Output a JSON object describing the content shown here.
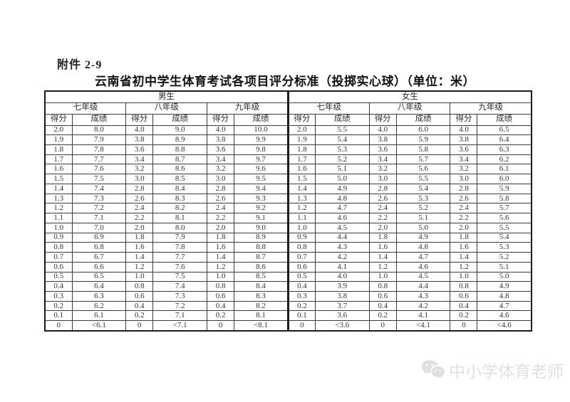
{
  "page": {
    "attachment_label": "附件 2-9",
    "title": "云南省初中学生体育考试各项目评分标准（投掷实心球）（单位：米）"
  },
  "table": {
    "gender_headers": [
      "男生",
      "女生"
    ],
    "grade_headers": [
      "七年级",
      "八年级",
      "九年级"
    ],
    "col_headers": [
      "得分",
      "成绩"
    ],
    "rows": [
      [
        "2.0",
        "8.0",
        "4.0",
        "9.0",
        "4.0",
        "10.0",
        "2.0",
        "5.5",
        "4.0",
        "6.0",
        "4.0",
        "6.5"
      ],
      [
        "1.9",
        "7.9",
        "3.8",
        "8.9",
        "3.8",
        "9.9",
        "1.9",
        "5.4",
        "3.8",
        "5.9",
        "3.8",
        "6.4"
      ],
      [
        "1.8",
        "7.8",
        "3.6",
        "8.8",
        "3.6",
        "9.8",
        "1.8",
        "5.3",
        "3.6",
        "5.8",
        "3.6",
        "6.3"
      ],
      [
        "1.7",
        "7.7",
        "3.4",
        "8.7",
        "3.4",
        "9.7",
        "1.7",
        "5.2",
        "3.4",
        "5.7",
        "3.4",
        "6.2"
      ],
      [
        "1.6",
        "7.6",
        "3.2",
        "8.6",
        "3.2",
        "9.6",
        "1.6",
        "5.1",
        "3.2",
        "5.6",
        "3.2",
        "6.1"
      ],
      [
        "1.5",
        "7.5",
        "3.0",
        "8.5",
        "3.0",
        "9.5",
        "1.5",
        "5.0",
        "3.0",
        "5.5",
        "3.0",
        "6.0"
      ],
      [
        "1.4",
        "7.4",
        "2.8",
        "8.4",
        "2.8",
        "9.4",
        "1.4",
        "4.9",
        "2.8",
        "5.4",
        "2.8",
        "5.9"
      ],
      [
        "1.3",
        "7.3",
        "2.6",
        "8.3",
        "2.6",
        "9.3",
        "1.3",
        "4.8",
        "2.6",
        "5.3",
        "2.6",
        "5.8"
      ],
      [
        "1.2",
        "7.2",
        "2.4",
        "8.2",
        "2.4",
        "9.2",
        "1.2",
        "4.7",
        "2.4",
        "5.2",
        "2.4",
        "5.7"
      ],
      [
        "1.1",
        "7.1",
        "2.2",
        "8.1",
        "2.2",
        "9.1",
        "1.1",
        "4.6",
        "2.2",
        "5.1",
        "2.2",
        "5.6"
      ],
      [
        "1.0",
        "7.0",
        "2.0",
        "8.0",
        "2.0",
        "9.0",
        "1.0",
        "4.5",
        "2.0",
        "5.0",
        "2.0",
        "5.5"
      ],
      [
        "0.9",
        "6.9",
        "1.8",
        "7.9",
        "1.8",
        "8.9",
        "0.9",
        "4.4",
        "1.8",
        "4.9",
        "1.8",
        "5.4"
      ],
      [
        "0.8",
        "6.8",
        "1.6",
        "7.8",
        "1.6",
        "8.8",
        "0.8",
        "4.3",
        "1.6",
        "4.8",
        "1.6",
        "5.3"
      ],
      [
        "0.7",
        "6.7",
        "1.4",
        "7.7",
        "1.4",
        "8.7",
        "0.7",
        "4.2",
        "1.4",
        "4.7",
        "1.4",
        "5.2"
      ],
      [
        "0.6",
        "6.6",
        "1.2",
        "7.6",
        "1.2",
        "8.6",
        "0.6",
        "4.1",
        "1.2",
        "4.6",
        "1.2",
        "5.1"
      ],
      [
        "0.5",
        "6.5",
        "1.0",
        "7.5",
        "1.0",
        "8.5",
        "0.5",
        "4.0",
        "1.0",
        "4.5",
        "1.0",
        "5.0"
      ],
      [
        "0.4",
        "6.4",
        "0.8",
        "7.4",
        "0.8",
        "8.4",
        "0.4",
        "3.9",
        "0.8",
        "4.4",
        "0.8",
        "4.9"
      ],
      [
        "0.3",
        "6.3",
        "0.6",
        "7.3",
        "0.6",
        "8.3",
        "0.3",
        "3.8",
        "0.6",
        "4.3",
        "0.6",
        "4.8"
      ],
      [
        "0.2",
        "6.2",
        "0.4",
        "7.2",
        "0.4",
        "8.2",
        "0.2",
        "3.7",
        "0.4",
        "4.2",
        "0.4",
        "4.7"
      ],
      [
        "0.1",
        "6.1",
        "0.2",
        "7.1",
        "0.2",
        "8.1",
        "0.1",
        "3.6",
        "0.2",
        "4.1",
        "0.2",
        "4.6"
      ],
      [
        "0",
        "<6.1",
        "0",
        "<7.1",
        "0",
        "<8.1",
        "0",
        "<3.6",
        "0",
        "<4.1",
        "0",
        "<4.6"
      ]
    ]
  },
  "watermark": {
    "icon": "wechat-icon",
    "text": "中小学体育老师",
    "color": "#e0e0e0"
  }
}
